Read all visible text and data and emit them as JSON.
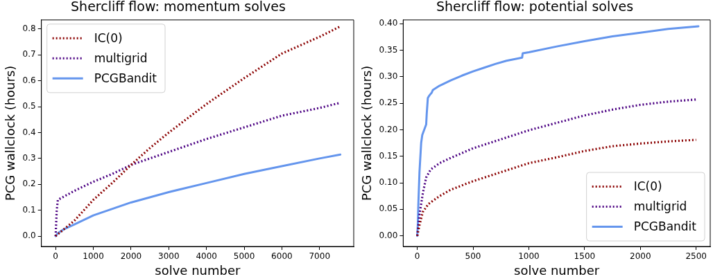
{
  "chart_data": [
    {
      "type": "line",
      "title": "Shercliff flow: momentum solves",
      "xlabel": "solve number",
      "ylabel": "PCG wallclock (hours)",
      "legend": "top left",
      "grid": false,
      "marker": "none",
      "xlim": [
        -377,
        7906
      ],
      "ylim": [
        -0.04,
        0.835
      ],
      "xticks": [
        0,
        1000,
        2000,
        3000,
        4000,
        5000,
        6000,
        7000
      ],
      "yticks": [
        {
          "value": 0,
          "label": "0.0"
        },
        {
          "value": 0.1,
          "label": "0.1"
        },
        {
          "value": 0.2,
          "label": "0.2"
        },
        {
          "value": 0.3,
          "label": "0.3"
        },
        {
          "value": 0.4,
          "label": "0.4"
        },
        {
          "value": 0.5,
          "label": "0.5"
        },
        {
          "value": 0.6,
          "label": "0.6"
        },
        {
          "value": 0.7,
          "label": "0.7"
        },
        {
          "value": 0.8,
          "label": "0.8"
        }
      ],
      "series": [
        {
          "name": "IC(0)",
          "color": "#8b0000",
          "line_style": "dotted",
          "x": [
            0,
            500,
            1000,
            1500,
            2000,
            2500,
            3000,
            4000,
            5000,
            6000,
            7000,
            7550
          ],
          "values": [
            0,
            0.06,
            0.14,
            0.205,
            0.275,
            0.34,
            0.4,
            0.51,
            0.61,
            0.705,
            0.77,
            0.81
          ]
        },
        {
          "name": "multigrid",
          "color": "#4b0082",
          "line_style": "dotted",
          "x": [
            0,
            30,
            60,
            500,
            1000,
            1500,
            2000,
            3000,
            4000,
            5000,
            6000,
            7000,
            7550
          ],
          "values": [
            0,
            0.1,
            0.14,
            0.175,
            0.21,
            0.24,
            0.275,
            0.325,
            0.375,
            0.42,
            0.465,
            0.495,
            0.515
          ]
        },
        {
          "name": "PCGBandit",
          "color": "#6495ed",
          "line_style": "solid",
          "x": [
            0,
            50,
            200,
            500,
            1000,
            2000,
            3000,
            4000,
            5000,
            6000,
            7000,
            7550
          ],
          "values": [
            0,
            0.01,
            0.025,
            0.045,
            0.08,
            0.13,
            0.17,
            0.205,
            0.24,
            0.27,
            0.3,
            0.315
          ]
        }
      ]
    },
    {
      "type": "line",
      "title": "Shercliff flow: potential solves",
      "xlabel": "solve number",
      "ylabel": "PCG wallclock (hours)",
      "legend": "bottom right",
      "grid": false,
      "marker": "none",
      "xlim": [
        -126,
        2626
      ],
      "ylim": [
        -0.02,
        0.407
      ],
      "xticks": [
        0,
        500,
        1000,
        1500,
        2000,
        2500
      ],
      "yticks": [
        {
          "value": 0,
          "label": "0.00"
        },
        {
          "value": 0.05,
          "label": "0.05"
        },
        {
          "value": 0.1,
          "label": "0.10"
        },
        {
          "value": 0.15,
          "label": "0.15"
        },
        {
          "value": 0.2,
          "label": "0.20"
        },
        {
          "value": 0.25,
          "label": "0.25"
        },
        {
          "value": 0.3,
          "label": "0.30"
        },
        {
          "value": 0.35,
          "label": "0.35"
        },
        {
          "value": 0.4,
          "label": "0.40"
        }
      ],
      "series": [
        {
          "name": "IC(0)",
          "color": "#8b0000",
          "line_style": "dotted",
          "x": [
            0,
            20,
            50,
            100,
            200,
            300,
            500,
            750,
            1000,
            1250,
            1500,
            1750,
            2000,
            2250,
            2500
          ],
          "values": [
            0,
            0.02,
            0.045,
            0.06,
            0.075,
            0.087,
            0.103,
            0.12,
            0.137,
            0.148,
            0.16,
            0.169,
            0.174,
            0.178,
            0.181
          ]
        },
        {
          "name": "multigrid",
          "color": "#4b0082",
          "line_style": "dotted",
          "x": [
            0,
            20,
            50,
            80,
            120,
            200,
            300,
            500,
            750,
            1000,
            1250,
            1500,
            1750,
            2000,
            2250,
            2500
          ],
          "values": [
            0,
            0.04,
            0.08,
            0.11,
            0.125,
            0.137,
            0.147,
            0.165,
            0.182,
            0.199,
            0.213,
            0.227,
            0.238,
            0.247,
            0.253,
            0.257
          ]
        },
        {
          "name": "PCGBandit",
          "color": "#6495ed",
          "line_style": "solid",
          "x": [
            0,
            5,
            10,
            20,
            35,
            45,
            80,
            85,
            95,
            110,
            130,
            140,
            200,
            300,
            400,
            500,
            600,
            700,
            800,
            940,
            945,
            1000,
            1250,
            1500,
            1750,
            2000,
            2250,
            2520
          ],
          "values": [
            0,
            0.02,
            0.06,
            0.12,
            0.175,
            0.19,
            0.21,
            0.23,
            0.26,
            0.265,
            0.27,
            0.275,
            0.283,
            0.293,
            0.302,
            0.31,
            0.317,
            0.324,
            0.33,
            0.336,
            0.344,
            0.346,
            0.357,
            0.367,
            0.376,
            0.383,
            0.39,
            0.395
          ]
        }
      ]
    }
  ]
}
